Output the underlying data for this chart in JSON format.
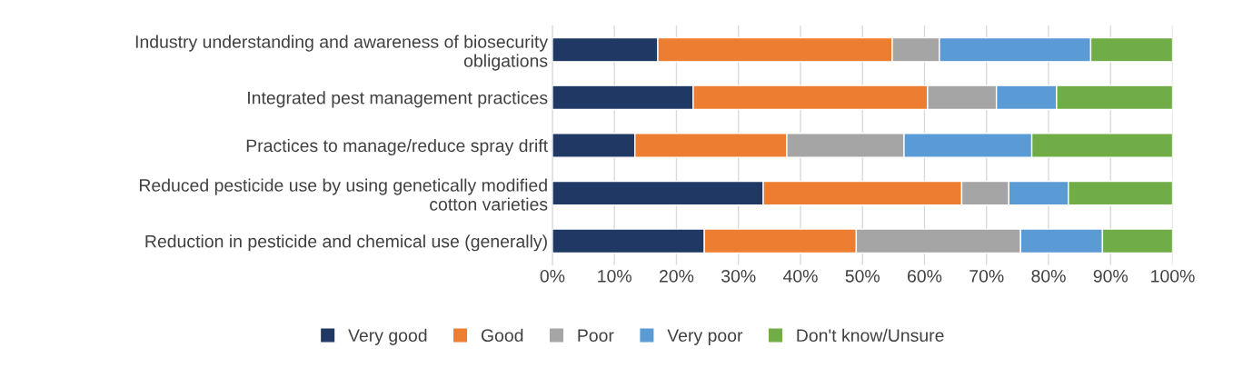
{
  "chart_data": {
    "type": "bar",
    "orientation": "horizontal",
    "stacked": true,
    "categories": [
      "Industry understanding and awareness of biosecurity obligations",
      "Integrated pest management practices",
      "Practices to manage/reduce spray drift",
      "Reduced pesticide use by using genetically modified cotton varieties",
      "Reduction in pesticide and chemical use (generally)"
    ],
    "series": [
      {
        "name": "Very good",
        "color": "#203864",
        "values": [
          17,
          22.7,
          13.3,
          34,
          24.5
        ]
      },
      {
        "name": "Good",
        "color": "#ed7d31",
        "values": [
          37.8,
          37.8,
          24.5,
          32,
          24.5
        ]
      },
      {
        "name": "Poor",
        "color": "#a5a5a5",
        "values": [
          7.6,
          11.1,
          18.9,
          7.6,
          26.5
        ]
      },
      {
        "name": "Very poor",
        "color": "#5b9bd5",
        "values": [
          24.4,
          9.7,
          20.6,
          9.6,
          13.2
        ]
      },
      {
        "name": "Don't know/Unsure",
        "color": "#70ad47",
        "values": [
          13.2,
          18.7,
          22.7,
          16.8,
          11.3
        ]
      }
    ],
    "xlim": [
      0,
      100
    ],
    "xticks": [
      {
        "value": 0,
        "label": "0%"
      },
      {
        "value": 10,
        "label": "10%"
      },
      {
        "value": 20,
        "label": "20%"
      },
      {
        "value": 30,
        "label": "30%"
      },
      {
        "value": 40,
        "label": "40%"
      },
      {
        "value": 50,
        "label": "50%"
      },
      {
        "value": 60,
        "label": "60%"
      },
      {
        "value": 70,
        "label": "70%"
      },
      {
        "value": 80,
        "label": "80%"
      },
      {
        "value": 90,
        "label": "90%"
      },
      {
        "value": 100,
        "label": "100%"
      }
    ],
    "grid": "x",
    "legend": "bottom"
  }
}
